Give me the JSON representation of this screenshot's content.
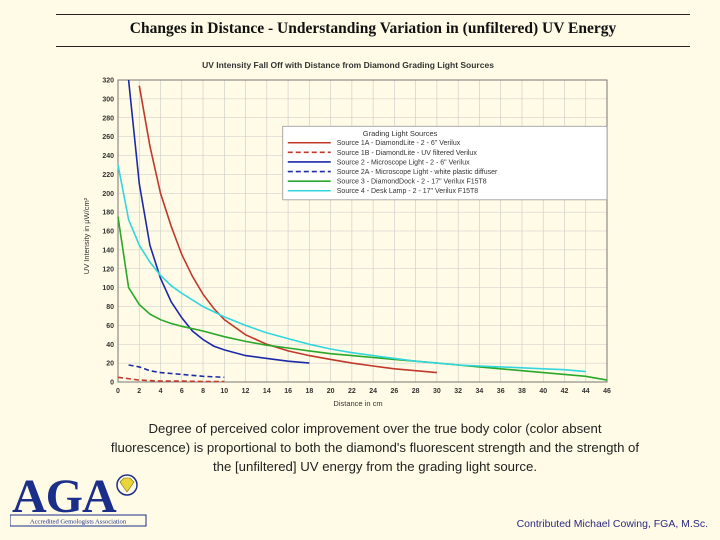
{
  "slide": {
    "title": "Changes in Distance  - Understanding Variation in (unfiltered) UV Energy",
    "caption": "Degree of perceived color improvement over the true body color (color absent fluorescence) is proportional to both the diamond's fluorescent strength and the strength of the [unfiltered] UV energy from the grading light source.",
    "credit": "Contributed Michael Cowing, FGA, M.Sc.",
    "logo": {
      "letters": "AGA",
      "subtitle": "Accredited Gemologists Association",
      "accent": "#1b2f8a",
      "gem_color": "#e9d43a"
    }
  },
  "chart_data": {
    "type": "line",
    "title": "UV Intensity Fall Off with Distance from Diamond Grading Light Sources",
    "xlabel": "Distance in cm",
    "ylabel": "UV Intensity in μW/cm²",
    "xlim": [
      0,
      46
    ],
    "ylim": [
      0,
      320
    ],
    "xticks": [
      0,
      2,
      4,
      6,
      8,
      10,
      12,
      14,
      16,
      18,
      20,
      22,
      24,
      26,
      28,
      30,
      32,
      34,
      36,
      38,
      40,
      42,
      44,
      46
    ],
    "yticks": [
      0,
      20,
      40,
      60,
      80,
      100,
      120,
      140,
      160,
      180,
      200,
      220,
      240,
      260,
      280,
      300,
      320
    ],
    "grid": true,
    "legend_title": "Grading Light Sources",
    "legend_position": "top-right",
    "series": [
      {
        "name": "Source 1A -  DiamondLite - 2 - 6\" Verilux",
        "color": "#c0392b",
        "dash": "solid",
        "x": [
          2,
          3,
          4,
          5,
          6,
          7,
          8,
          9,
          10,
          12,
          14,
          16,
          18,
          20,
          22,
          24,
          26,
          28,
          30
        ],
        "y": [
          314,
          250,
          200,
          165,
          135,
          112,
          93,
          78,
          66,
          50,
          40,
          33,
          28,
          24,
          20,
          17,
          14,
          12,
          10
        ]
      },
      {
        "name": "Source 1B -  DiamondLite - UV filtered Verilux",
        "color": "#c0392b",
        "dash": "dashed",
        "x": [
          0,
          2,
          4,
          6,
          8,
          10
        ],
        "y": [
          5,
          2,
          1,
          1,
          0.5,
          0.5
        ]
      },
      {
        "name": "Source 2 - Microscope Light -  2 - 6\" Verilux",
        "color": "#1a2aa8",
        "dash": "solid",
        "x": [
          1,
          2,
          3,
          4,
          5,
          6,
          7,
          8,
          9,
          10,
          12,
          14,
          16,
          18
        ],
        "y": [
          320,
          210,
          145,
          110,
          85,
          68,
          54,
          45,
          38,
          34,
          28,
          25,
          22,
          20
        ]
      },
      {
        "name": "Source 2A - Microscope Light - white plastic diffuser",
        "color": "#1a2aa8",
        "dash": "dashed",
        "x": [
          1,
          2,
          3,
          4,
          5,
          6,
          8,
          10
        ],
        "y": [
          18,
          16,
          12,
          10,
          9,
          8,
          6,
          5
        ]
      },
      {
        "name": "Source 3 - DiamondDock - 2 - 17\" Verilux F15T8",
        "color": "#29a829",
        "dash": "solid",
        "x": [
          0,
          1,
          2,
          3,
          4,
          5,
          6,
          8,
          10,
          12,
          14,
          16,
          18,
          20,
          22,
          24,
          26,
          28,
          30,
          32,
          34,
          36,
          38,
          40,
          42,
          44,
          46
        ],
        "y": [
          175,
          100,
          82,
          72,
          66,
          62,
          59,
          54,
          48,
          43,
          39,
          36,
          33,
          30,
          28,
          26,
          24,
          22,
          20,
          18,
          16,
          14,
          12,
          10,
          8,
          6,
          2
        ]
      },
      {
        "name": "Source 4 - Desk Lamp - 2 - 17\" Verilux F15T8",
        "color": "#33d6dc",
        "dash": "solid",
        "x": [
          0,
          1,
          2,
          3,
          4,
          5,
          6,
          7,
          8,
          10,
          12,
          14,
          16,
          18,
          20,
          22,
          24,
          26,
          28,
          30,
          32,
          34,
          36,
          38,
          40,
          42,
          44
        ],
        "y": [
          230,
          172,
          145,
          127,
          113,
          102,
          94,
          87,
          80,
          69,
          60,
          52,
          46,
          40,
          35,
          31,
          28,
          25,
          22,
          20,
          18,
          17,
          16,
          15,
          14,
          13,
          11
        ]
      }
    ]
  }
}
